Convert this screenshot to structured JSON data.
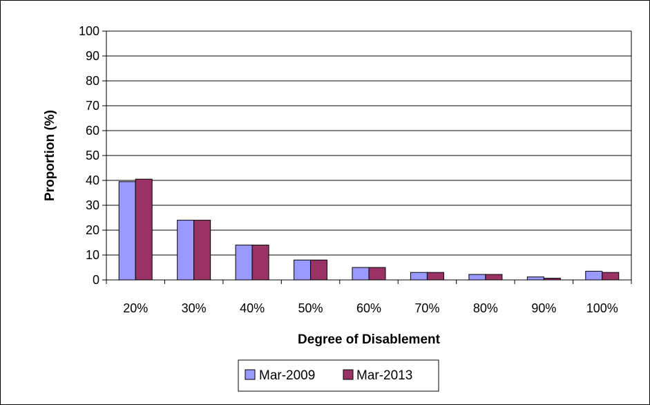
{
  "chart_data": {
    "type": "bar",
    "title": "",
    "xlabel": "Degree of Disablement",
    "ylabel": "Proportion (%)",
    "ylim": [
      0,
      100
    ],
    "yticks": [
      "0",
      "10",
      "20",
      "30",
      "40",
      "50",
      "60",
      "70",
      "80",
      "90",
      "100"
    ],
    "categories": [
      "20%",
      "30%",
      "40%",
      "50%",
      "60%",
      "70%",
      "80%",
      "90%",
      "100%"
    ],
    "series": [
      {
        "name": "Mar-2009",
        "color": "#9999ff",
        "values": [
          39.5,
          24,
          14,
          8,
          5,
          3,
          2.2,
          1.2,
          3.5
        ]
      },
      {
        "name": "Mar-2013",
        "color": "#993366",
        "values": [
          40.5,
          24,
          14,
          8,
          5,
          3,
          2.2,
          0.7,
          3.0
        ]
      }
    ],
    "grid": true,
    "legend": "bottom-center"
  }
}
